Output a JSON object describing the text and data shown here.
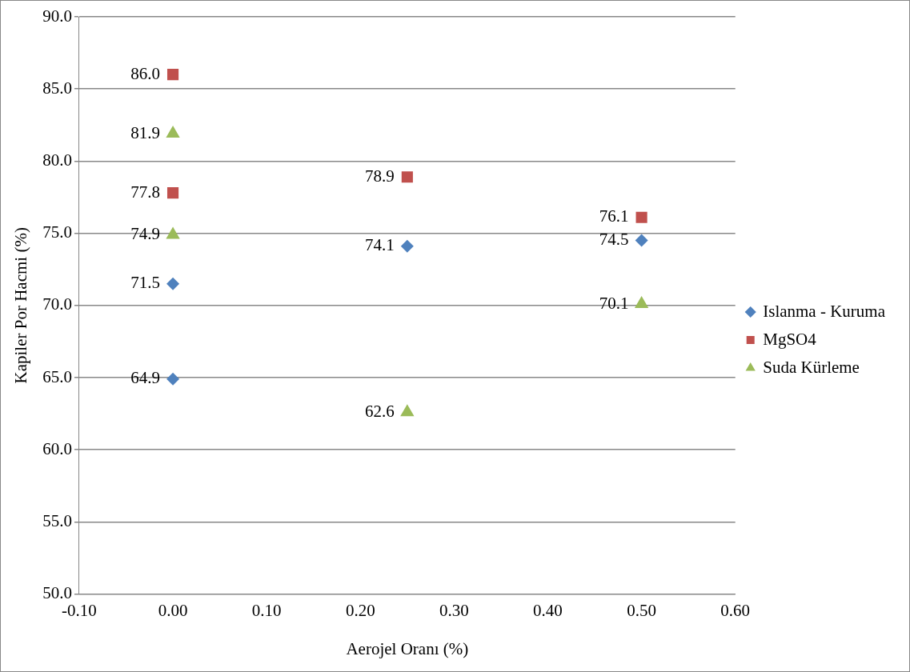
{
  "chart_data": {
    "type": "scatter",
    "xlabel": "Aerojel Oranı (%)",
    "ylabel": "Kapiler Por Hacmi (%)",
    "xlim": [
      -0.1,
      0.6
    ],
    "xticks": [
      {
        "value": -0.1,
        "label": "-0.10"
      },
      {
        "value": 0,
        "label": "0.00"
      },
      {
        "value": 0.1,
        "label": "0.10"
      },
      {
        "value": 0.2,
        "label": "0.20"
      },
      {
        "value": 0.3,
        "label": "0.30"
      },
      {
        "value": 0.4,
        "label": "0.40"
      },
      {
        "value": 0.5,
        "label": "0.50"
      },
      {
        "value": 0.6,
        "label": "0.60"
      }
    ],
    "ylim": [
      50,
      90
    ],
    "yticks": [
      {
        "value": 50,
        "label": "50.0"
      },
      {
        "value": 55,
        "label": "55.0"
      },
      {
        "value": 60,
        "label": "60.0"
      },
      {
        "value": 65,
        "label": "65.0"
      },
      {
        "value": 70,
        "label": "70.0"
      },
      {
        "value": 75,
        "label": "75.0"
      },
      {
        "value": 80,
        "label": "80.0"
      },
      {
        "value": 85,
        "label": "85.0"
      },
      {
        "value": 90,
        "label": "90.0"
      }
    ],
    "grid": "y",
    "legend": "right",
    "series": [
      {
        "name": "Islanma - Kuruma",
        "color": "#4f81bd",
        "marker": "diamond",
        "x": [
          0,
          0,
          0.25,
          0.5
        ],
        "values": [
          71.5,
          64.9,
          74.1,
          74.5
        ],
        "value_labels": [
          "71.5",
          "64.9",
          "74.1",
          "74.5"
        ]
      },
      {
        "name": "MgSO4",
        "color": "#c0504d",
        "marker": "square",
        "x": [
          0,
          0,
          0.25,
          0.5
        ],
        "values": [
          86.0,
          77.8,
          78.9,
          76.1
        ],
        "value_labels": [
          "86.0",
          "77.8",
          "78.9",
          "76.1"
        ]
      },
      {
        "name": "Suda Kürleme",
        "color": "#9bbb59",
        "marker": "triangle",
        "x": [
          0,
          0,
          0.25,
          0.5
        ],
        "values": [
          81.9,
          74.9,
          62.6,
          70.1
        ],
        "value_labels": [
          "81.9",
          "74.9",
          "62.6",
          "70.1"
        ]
      }
    ]
  }
}
